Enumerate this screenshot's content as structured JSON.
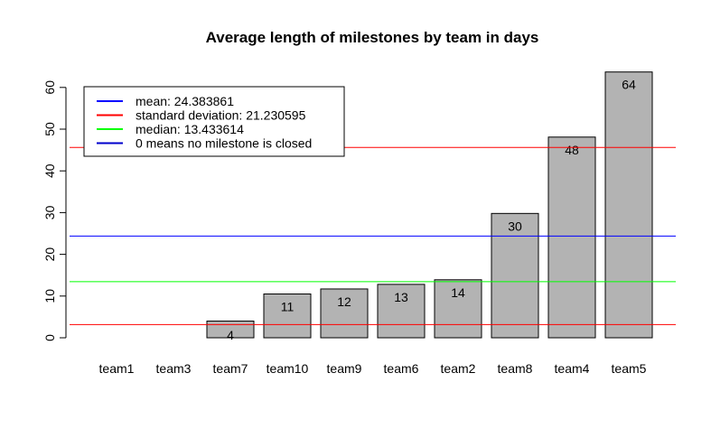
{
  "chart_data": {
    "type": "bar",
    "title": "Average length of milestones by team in days",
    "xlabel": "",
    "ylabel": "",
    "categories": [
      "team1",
      "team3",
      "team7",
      "team10",
      "team9",
      "team6",
      "team2",
      "team8",
      "team4",
      "team5"
    ],
    "values": [
      0,
      0,
      4,
      10.5,
      11.7,
      12.8,
      13.9,
      29.8,
      48.1,
      63.7
    ],
    "data_labels": [
      "",
      "",
      "4",
      "11",
      "12",
      "13",
      "14",
      "30",
      "48",
      "64"
    ],
    "ylim": [
      0,
      65
    ],
    "yticks": [
      0,
      10,
      20,
      30,
      40,
      50,
      60
    ],
    "bar_color": "#b3b3b3",
    "grid": false,
    "reference_lines": [
      {
        "value": 24.383861,
        "color": "#0000ff"
      },
      {
        "value": 45.614456,
        "color": "#ff0000"
      },
      {
        "value": 3.153266,
        "color": "#ff0000"
      },
      {
        "value": 13.433614,
        "color": "#00ff00"
      }
    ],
    "legend": {
      "position": "top-left",
      "entries": [
        {
          "label": "mean: 24.383861",
          "color": "#0000ff"
        },
        {
          "label": "standard deviation: 21.230595",
          "color": "#ff0000"
        },
        {
          "label": "median: 13.433614",
          "color": "#00ff00"
        },
        {
          "label": "0 means no milestone is closed",
          "color": "#0000cd"
        }
      ]
    }
  }
}
